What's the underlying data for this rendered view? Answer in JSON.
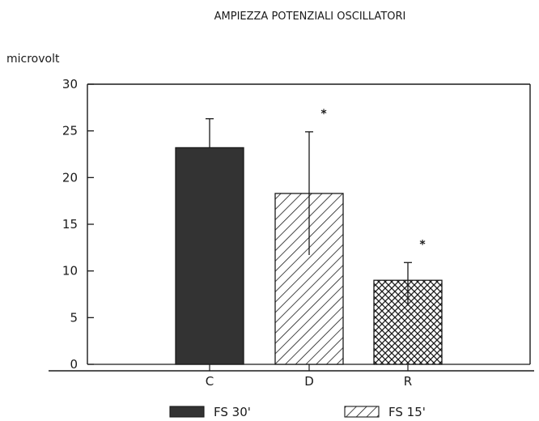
{
  "chart_data": {
    "type": "bar",
    "title": "AMPIEZZA POTENZIALI OSCILLATORI",
    "ylabel": "microvolt",
    "xlabel": "",
    "ylim": [
      0,
      30
    ],
    "yticks": [
      0,
      5,
      10,
      15,
      20,
      25,
      30
    ],
    "grid": false,
    "legend_placement": "bottom",
    "categories": [
      "C",
      "D",
      "R"
    ],
    "values": [
      23.2,
      18.3,
      9.0
    ],
    "error_upper": [
      26.3,
      24.9,
      10.9
    ],
    "error_lower": [
      null,
      11.7,
      6.3
    ],
    "significance": [
      "",
      "*",
      "*"
    ],
    "fills": [
      "solid",
      "hatch",
      "crosshatch"
    ],
    "legend": [
      {
        "label": "FS 30'",
        "fill": "solid"
      },
      {
        "label": "FS 15'",
        "fill": "hatch"
      }
    ],
    "colors": {
      "bar": "#333333",
      "line": "#1a1a1a",
      "background": "#ffffff"
    }
  }
}
